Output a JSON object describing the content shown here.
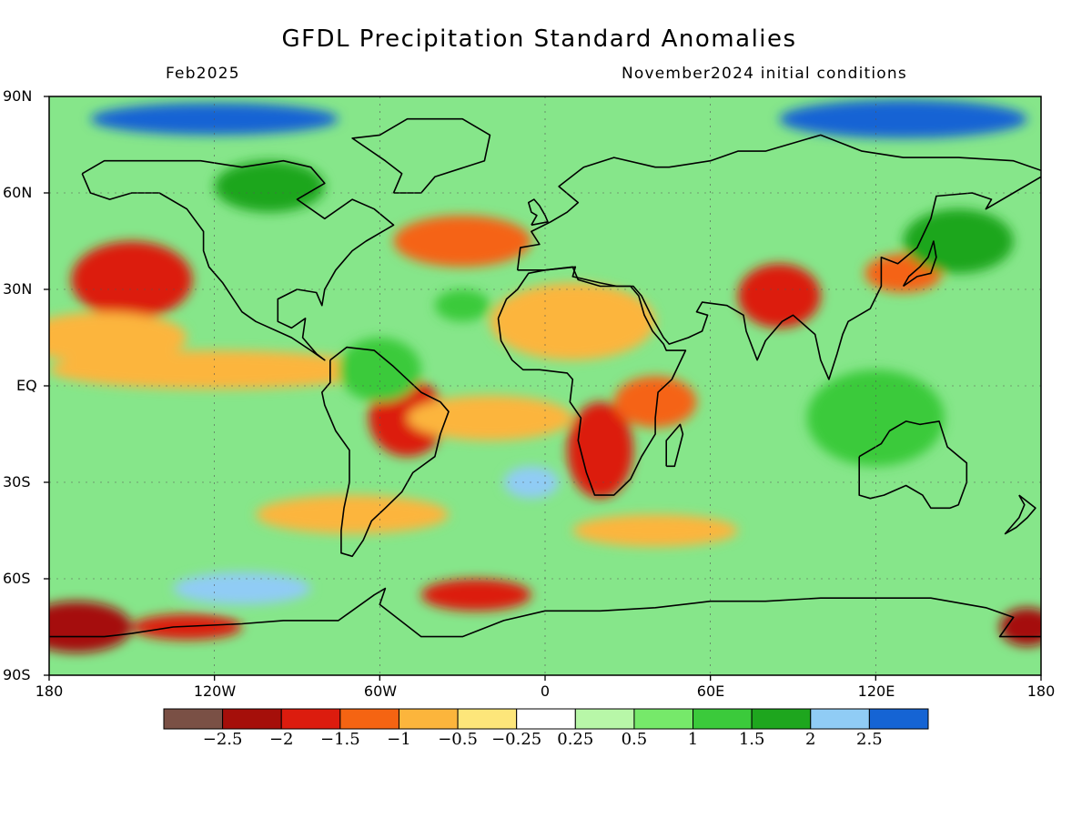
{
  "title": "GFDL Precipitation Standard Anomalies",
  "valid_month": "Feb2025",
  "initial_conditions": "November2024 initial conditions",
  "lat_labels": [
    "90N",
    "60N",
    "30N",
    "EQ",
    "30S",
    "60S",
    "90S"
  ],
  "lon_labels": [
    "180",
    "120W",
    "60W",
    "0",
    "60E",
    "120E",
    "180"
  ],
  "legend": {
    "colors": [
      "#7a5045",
      "#a50f0a",
      "#dc1c0e",
      "#f56412",
      "#fcb53c",
      "#fde67a",
      "#ffffff",
      "#b8f7a8",
      "#76e96a",
      "#3bca3b",
      "#1ea61e",
      "#90ccf5",
      "#1564d4"
    ],
    "labels": [
      "−2.5",
      "−2",
      "−1.5",
      "−1",
      "−0.5",
      "−0.25",
      "0.25",
      "0.5",
      "1",
      "1.5",
      "2",
      "2.5"
    ]
  },
  "map_data": {
    "projection": "equirectangular",
    "lon_range": [
      -180,
      180
    ],
    "lat_range": [
      -90,
      90
    ],
    "variable": "precipitation standard anomaly",
    "anomaly_regions": [
      {
        "lon": -150,
        "lat": 33,
        "rx": 22,
        "ry": 12,
        "level": -1.6
      },
      {
        "lon": -160,
        "lat": 15,
        "rx": 30,
        "ry": 8,
        "level": -0.6
      },
      {
        "lon": -120,
        "lat": 5,
        "rx": 60,
        "ry": 6,
        "level": -0.7
      },
      {
        "lon": -50,
        "lat": -10,
        "rx": 14,
        "ry": 12,
        "level": -1.7
      },
      {
        "lon": -20,
        "lat": -10,
        "rx": 30,
        "ry": 7,
        "level": -0.9
      },
      {
        "lon": 20,
        "lat": -20,
        "rx": 12,
        "ry": 15,
        "level": -1.8
      },
      {
        "lon": 40,
        "lat": -5,
        "rx": 15,
        "ry": 8,
        "level": -1.4
      },
      {
        "lon": 10,
        "lat": 20,
        "rx": 30,
        "ry": 12,
        "level": -0.6
      },
      {
        "lon": -30,
        "lat": 45,
        "rx": 25,
        "ry": 8,
        "level": -1.2
      },
      {
        "lon": 85,
        "lat": 28,
        "rx": 15,
        "ry": 10,
        "level": -1.6
      },
      {
        "lon": 130,
        "lat": 35,
        "rx": 14,
        "ry": 6,
        "level": -1.3
      },
      {
        "lon": -170,
        "lat": -75,
        "rx": 20,
        "ry": 8,
        "level": -2.1
      },
      {
        "lon": -130,
        "lat": -75,
        "rx": 20,
        "ry": 4,
        "level": -1.6
      },
      {
        "lon": -25,
        "lat": -65,
        "rx": 20,
        "ry": 5,
        "level": -1.6
      },
      {
        "lon": 175,
        "lat": -75,
        "rx": 10,
        "ry": 6,
        "level": -2.0
      },
      {
        "lon": -70,
        "lat": -40,
        "rx": 35,
        "ry": 6,
        "level": -0.8
      },
      {
        "lon": 40,
        "lat": -45,
        "rx": 30,
        "ry": 5,
        "level": -0.8
      },
      {
        "lon": -60,
        "lat": 5,
        "rx": 15,
        "ry": 10,
        "level": 1.2
      },
      {
        "lon": -100,
        "lat": 62,
        "rx": 20,
        "ry": 8,
        "level": 2.0
      },
      {
        "lon": -120,
        "lat": 83,
        "rx": 45,
        "ry": 5,
        "level": 2.6
      },
      {
        "lon": 130,
        "lat": 83,
        "rx": 45,
        "ry": 6,
        "level": 2.6
      },
      {
        "lon": 150,
        "lat": 45,
        "rx": 20,
        "ry": 10,
        "level": 1.6
      },
      {
        "lon": 120,
        "lat": -10,
        "rx": 25,
        "ry": 15,
        "level": 1.3
      },
      {
        "lon": -5,
        "lat": -30,
        "rx": 10,
        "ry": 5,
        "level": 2.2
      },
      {
        "lon": -110,
        "lat": -63,
        "rx": 25,
        "ry": 5,
        "level": 2.2
      },
      {
        "lon": -30,
        "lat": 25,
        "rx": 10,
        "ry": 5,
        "level": 1.5
      }
    ]
  }
}
